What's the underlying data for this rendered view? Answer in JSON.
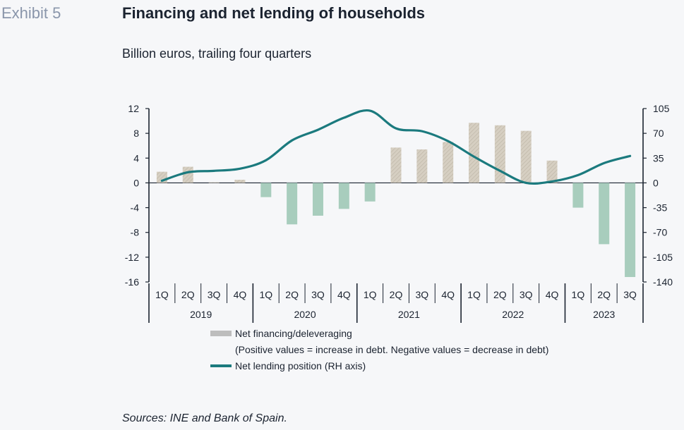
{
  "header": {
    "exhibit": "Exhibit 5",
    "title": "Financing and net lending of households",
    "subtitle": "Billion euros, trailing four quarters"
  },
  "footer": {
    "source": "Sources: INE and Bank of Spain."
  },
  "colors": {
    "positive_bar": "#d6cfc2",
    "positive_hatch": "#c2baac",
    "negative_bar": "#a8cdbd",
    "line": "#1b7a7e",
    "legend_bar": "#bdbdbd"
  },
  "chart_data": {
    "type": "bar",
    "title": "Financing and net lending of households",
    "subtitle": "Billion euros, trailing four quarters",
    "categories": [
      "1Q",
      "2Q",
      "3Q",
      "4Q",
      "1Q",
      "2Q",
      "3Q",
      "4Q",
      "1Q",
      "2Q",
      "3Q",
      "4Q",
      "1Q",
      "2Q",
      "3Q",
      "4Q",
      "1Q",
      "2Q",
      "3Q"
    ],
    "years": [
      {
        "label": "2019",
        "quarters": 4
      },
      {
        "label": "2020",
        "quarters": 4
      },
      {
        "label": "2021",
        "quarters": 4
      },
      {
        "label": "2022",
        "quarters": 4
      },
      {
        "label": "2023",
        "quarters": 3
      }
    ],
    "ylim": [
      -16,
      12
    ],
    "yticks": [
      12,
      8,
      4,
      0,
      -4,
      -8,
      -12,
      -16
    ],
    "y2lim": [
      -140,
      105
    ],
    "y2ticks": [
      105,
      70,
      35,
      0,
      -35,
      -70,
      -105,
      -140
    ],
    "series": [
      {
        "name": "Net financing/deleveraging",
        "note": "(Positive values = increase in debt. Negative values = decrease in debt)",
        "type": "bar",
        "axis": "left",
        "values": [
          1.8,
          2.6,
          0.1,
          0.5,
          -2.3,
          -6.7,
          -5.3,
          -4.2,
          -3.0,
          5.7,
          5.4,
          6.6,
          9.7,
          9.3,
          8.4,
          3.6,
          -4.0,
          -9.9,
          -15.2
        ]
      },
      {
        "name": "Net lending position (RH axis)",
        "type": "line",
        "axis": "right",
        "values": [
          3,
          15,
          17,
          20,
          32,
          60,
          75,
          92,
          102,
          77,
          73,
          59,
          37,
          17,
          0,
          2,
          11,
          28,
          38
        ]
      }
    ],
    "legend_position": "bottom",
    "grid": false
  }
}
